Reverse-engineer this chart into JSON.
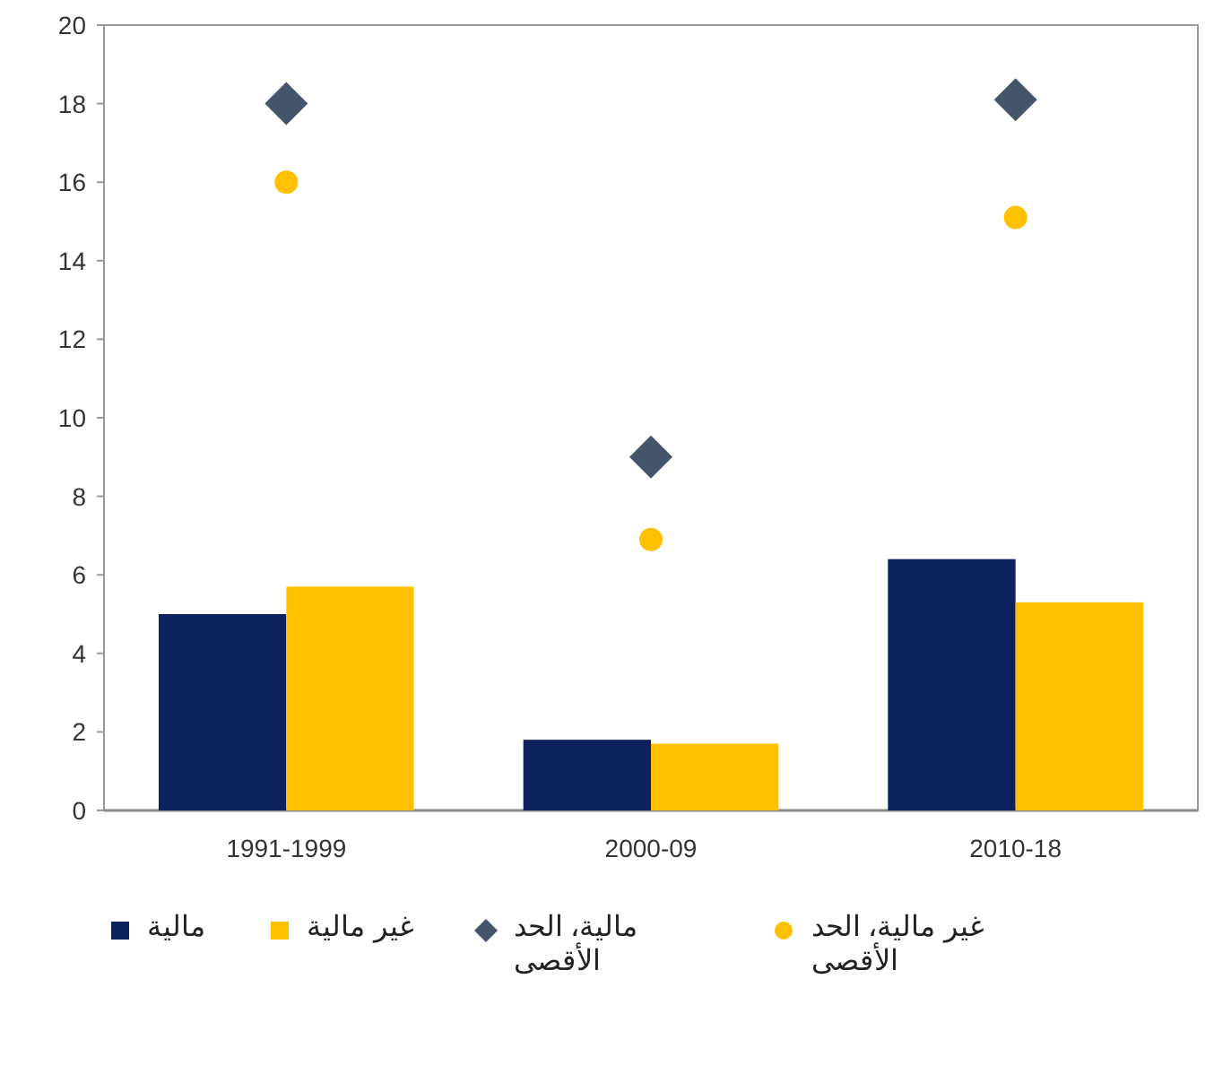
{
  "chart_data": {
    "type": "bar",
    "categories": [
      "1991-1999",
      "2000-09",
      "2010-18"
    ],
    "series": [
      {
        "name": "مالية",
        "color": "#0d215e",
        "values": [
          5.0,
          1.8,
          6.4
        ]
      },
      {
        "name": "غير مالية",
        "color": "#ffc000",
        "values": [
          5.7,
          1.7,
          5.3
        ]
      },
      {
        "name": "مالية، الحد الأقصى",
        "type": "scatter",
        "marker": "diamond",
        "color": "#44546a",
        "values": [
          18.0,
          9.0,
          18.1
        ]
      },
      {
        "name": "غير مالية، الحد الأقصى",
        "type": "scatter",
        "marker": "circle",
        "color": "#ffc000",
        "values": [
          16,
          6.9,
          15.1
        ]
      }
    ],
    "ylim": [
      0,
      20
    ],
    "yticks": [
      0,
      2,
      4,
      6,
      8,
      10,
      12,
      14,
      16,
      18,
      20
    ],
    "grid": false,
    "legend": "bottom"
  }
}
